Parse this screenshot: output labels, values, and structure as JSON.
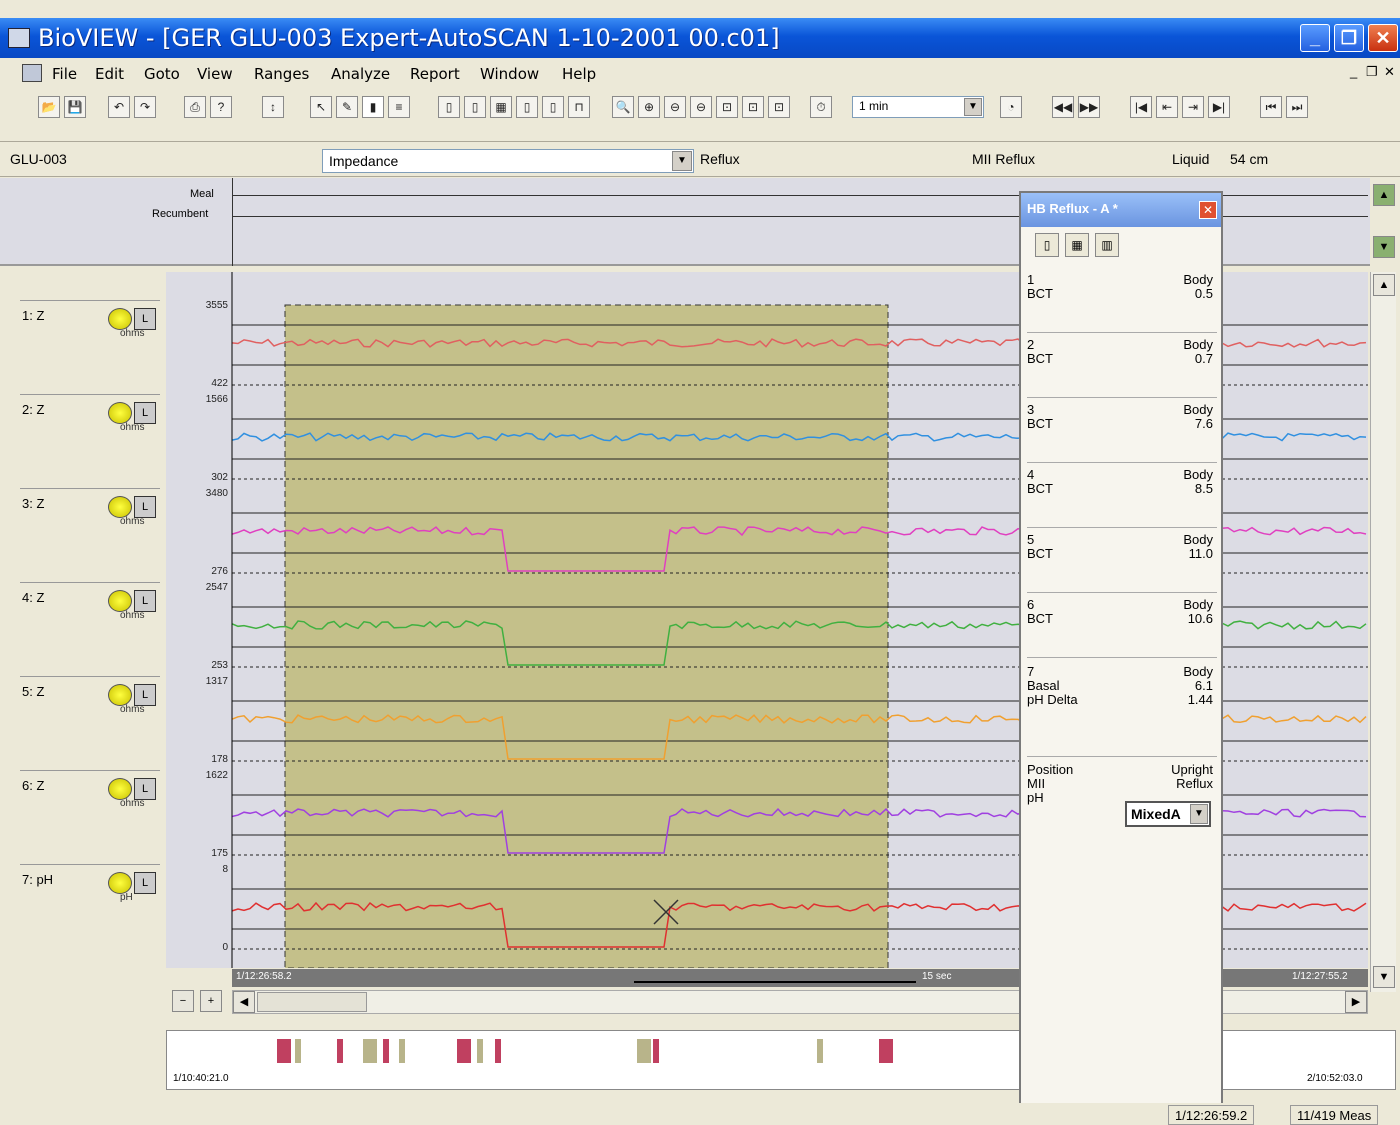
{
  "window": {
    "title": "BioVIEW - [GER GLU-003 Expert-AutoSCAN 1-10-2001 00.c01]"
  },
  "menu": [
    "File",
    "Edit",
    "Goto",
    "View",
    "Ranges",
    "Analyze",
    "Report",
    "Window",
    "Help"
  ],
  "toolbar": {
    "zoom_value": "1 min"
  },
  "infobar": {
    "patient": "GLU-003",
    "channel_select": "Impedance",
    "reflux_label": "Reflux",
    "mii_reflux_label": "MII Reflux",
    "liquid_label": "Liquid",
    "liquid_value": "54 cm"
  },
  "eventband": {
    "meal": "Meal",
    "recumbent": "Recumbent"
  },
  "channels": [
    {
      "label": "1: Z",
      "unit": "ohms",
      "ymax": "3555",
      "ymin": "422",
      "color": "#e06060"
    },
    {
      "label": "2: Z",
      "unit": "ohms",
      "ymax": "1566",
      "ymin": "302",
      "color": "#3090e0"
    },
    {
      "label": "3: Z",
      "unit": "ohms",
      "ymax": "3480",
      "ymin": "276",
      "color": "#e040c0"
    },
    {
      "label": "4: Z",
      "unit": "ohms",
      "ymax": "2547",
      "ymin": "253",
      "color": "#40b040"
    },
    {
      "label": "5: Z",
      "unit": "ohms",
      "ymax": "1317",
      "ymin": "178",
      "color": "#f0a030"
    },
    {
      "label": "6: Z",
      "unit": "ohms",
      "ymax": "1622",
      "ymin": "175",
      "color": "#a040e0"
    },
    {
      "label": "7: pH",
      "unit": "pH",
      "ymax": "8",
      "ymin": "0",
      "color": "#e03030"
    }
  ],
  "timeaxis": {
    "start": "1/12:26:58.2",
    "scale": "15 sec",
    "end": "1/12:27:55.2"
  },
  "overview": {
    "start": "1/10:40:21.0",
    "end": "2/10:52:03.0"
  },
  "panel": {
    "title": "HB Reflux - A *",
    "rows": [
      {
        "num": "1",
        "name": "BCT",
        "kind": "Body",
        "value": "0.5"
      },
      {
        "num": "2",
        "name": "BCT",
        "kind": "Body",
        "value": "0.7"
      },
      {
        "num": "3",
        "name": "BCT",
        "kind": "Body",
        "value": "7.6"
      },
      {
        "num": "4",
        "name": "BCT",
        "kind": "Body",
        "value": "8.5"
      },
      {
        "num": "5",
        "name": "BCT",
        "kind": "Body",
        "value": "11.0"
      },
      {
        "num": "6",
        "name": "BCT",
        "kind": "Body",
        "value": "10.6"
      }
    ],
    "row7": {
      "num": "7",
      "name1": "Basal",
      "name2": "pH Delta",
      "kind": "Body",
      "value1": "6.1",
      "value2": "1.44"
    },
    "position_label": "Position",
    "position_value": "Upright",
    "mii_label": "MII",
    "mii_value": "Reflux",
    "ph_label": "pH",
    "ph_select": "MixedA"
  },
  "status": {
    "time": "1/12:26:59.2",
    "meas": "11/419 Meas"
  }
}
